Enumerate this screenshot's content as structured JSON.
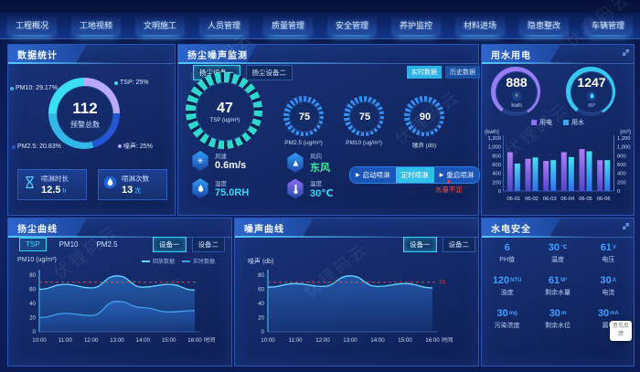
{
  "watermark": "伏锂码云",
  "icons": {
    "play": "▶",
    "warning_triangle": "▲",
    "fan": "✳",
    "arrow": "▶"
  },
  "nav": {
    "items": [
      "工程概况",
      "工地视频",
      "文明施工",
      "人员管理",
      "质量管理",
      "安全管理",
      "养护监控",
      "材料进场",
      "隐患整改",
      "车辆管理"
    ]
  },
  "panels": {
    "stats": {
      "title": "数据统计",
      "donut": {
        "value": "112",
        "label": "预警总数",
        "segments": [
          {
            "name": "TSP",
            "pct": "25%",
            "color": "#3ae0f2"
          },
          {
            "name": "噪声",
            "pct": "25%",
            "color": "#b9a9f9"
          },
          {
            "name": "PM2.5",
            "pct": "20.83%",
            "color": "#2456d8"
          },
          {
            "name": "PM10",
            "pct": "29.17%",
            "color": "#31b8e8"
          }
        ]
      },
      "boxes": [
        {
          "icon": "hourglass-icon",
          "label": "喷淋时长",
          "value": "12.5",
          "unit": "h"
        },
        {
          "icon": "water-drop-icon",
          "label": "喷淋次数",
          "value": "13",
          "unit": "次"
        }
      ]
    },
    "dust_monitor": {
      "title": "扬尘噪声监测",
      "tabs": [
        {
          "label": "扬尘设备一",
          "active": true
        },
        {
          "label": "扬尘设备二",
          "active": false
        }
      ],
      "data_buttons": [
        {
          "label": "实时数据",
          "active": true
        },
        {
          "label": "历史数据",
          "active": false
        }
      ],
      "main_gauge": {
        "value": "47",
        "label": "TSP",
        "unit": "(ug/m³)"
      },
      "gauges": [
        {
          "value": "75",
          "label": "PM2.5",
          "unit": "(ug/m³)"
        },
        {
          "value": "75",
          "label": "PM10",
          "unit": "(ug/m³)"
        },
        {
          "value": "90",
          "label": "噪声",
          "unit": "(db)"
        }
      ],
      "env": [
        {
          "label": "风速",
          "value": "0.6m/s",
          "icon": "fan-icon",
          "icon_color": "#2f9df5",
          "value_color": "#eef8ff"
        },
        {
          "label": "风向",
          "value": "东风",
          "icon": "wind-arrow-icon",
          "icon_color": "#2f9df5",
          "value_color": "#35e8a0"
        },
        {
          "label": "湿度",
          "value": "75.0RH",
          "icon": "humidity-icon",
          "icon_color": "#2f9df5",
          "value_color": "#35d6f5"
        },
        {
          "label": "温度",
          "value": "30℃",
          "icon": "thermometer-icon",
          "icon_color": "#8f6df0",
          "value_color": "#35d6f5"
        }
      ],
      "spray_buttons": [
        {
          "label": "启动喷淋",
          "play": true,
          "active": false
        },
        {
          "label": "定时喷淋",
          "play": false,
          "active": true
        },
        {
          "label": "重启喷淋",
          "play": true,
          "active": false
        }
      ],
      "warning": "水量不足"
    },
    "usage": {
      "title": "用水用电",
      "rings": [
        {
          "value": "888",
          "unit": "kwh",
          "color": "#9a7bf7",
          "icon": "lightning-icon"
        },
        {
          "value": "1247",
          "unit": "m³",
          "color": "#35c8f0",
          "icon": "water-drop-icon"
        }
      ],
      "legend": [
        {
          "label": "用电",
          "color": "#8f6df0"
        },
        {
          "label": "用水",
          "color": "#35aef0"
        }
      ]
    },
    "dust_curve": {
      "title": "扬尘曲线",
      "tabs": [
        {
          "label": "TSP",
          "active": true
        },
        {
          "label": "PM10",
          "active": false
        },
        {
          "label": "PM2.5",
          "active": false
        }
      ],
      "buttons": [
        {
          "label": "设备一",
          "active": true
        },
        {
          "label": "设备二",
          "active": false
        }
      ],
      "legend": [
        {
          "label": "回放数据"
        },
        {
          "label": "实时数据"
        }
      ],
      "axis_title": "PM10 (ug/m³)"
    },
    "noise_curve": {
      "title": "噪声曲线",
      "buttons": [
        {
          "label": "设备一",
          "active": true
        },
        {
          "label": "设备二",
          "active": false
        }
      ],
      "axis_title": "噪声 (db)"
    },
    "safety": {
      "title": "水电安全",
      "metrics": [
        {
          "value": "6",
          "unit": "",
          "label": "PH值"
        },
        {
          "value": "30",
          "unit": "℃",
          "label": "温度"
        },
        {
          "value": "61",
          "unit": "V",
          "label": "电压"
        },
        {
          "value": "120",
          "unit": "NTU",
          "label": "浊度"
        },
        {
          "value": "61",
          "unit": "M³",
          "label": "剩余水量"
        },
        {
          "value": "30",
          "unit": "A",
          "label": "电流"
        },
        {
          "value": "30",
          "unit": "mg",
          "label": "污染浓度"
        },
        {
          "value": "30",
          "unit": "m",
          "label": "剩余水位"
        },
        {
          "value": "30",
          "unit": "mA",
          "label": "漏电"
        }
      ],
      "widget": "意见反馈"
    }
  },
  "chart_data": [
    {
      "id": "usage_bars",
      "type": "bar",
      "title": "用水用电",
      "categories": [
        "06-01",
        "06-02",
        "06-03",
        "06-04",
        "06-05",
        "06-06"
      ],
      "series": [
        {
          "name": "用电",
          "values": [
            880,
            730,
            680,
            880,
            950,
            700
          ]
        },
        {
          "name": "用水",
          "values": [
            620,
            760,
            700,
            770,
            900,
            700
          ]
        }
      ],
      "ylabel_left": "(kwh)",
      "ylabel_right": "(m³)",
      "ylim": [
        0,
        1200
      ],
      "yticks": [
        0,
        200,
        400,
        600,
        800,
        1000,
        1200
      ],
      "legend_position": "top"
    },
    {
      "id": "dust_lines",
      "type": "line",
      "title": "扬尘曲线",
      "x": [
        "10:00",
        "11:00",
        "12:00",
        "13:00",
        "14:00",
        "15:00",
        "16:00"
      ],
      "series": [
        {
          "name": "回放数据",
          "values": [
            60,
            67,
            62,
            79,
            63,
            67,
            59
          ]
        },
        {
          "name": "实时数据",
          "values": [
            20,
            26,
            23,
            43,
            34,
            28,
            30
          ]
        }
      ],
      "threshold": 70,
      "ylabel": "PM10 (ug/m³)",
      "xlabel": "时间",
      "ylim": [
        0,
        80
      ],
      "yticks": [
        0,
        20,
        40,
        60,
        80
      ]
    },
    {
      "id": "noise_lines",
      "type": "line",
      "title": "噪声曲线",
      "x": [
        "10:00",
        "11:00",
        "12:00",
        "13:00",
        "14:00",
        "15:00",
        "16:00"
      ],
      "series": [
        {
          "name": "噪声",
          "values": [
            63,
            68,
            64,
            79,
            64,
            68,
            62
          ]
        }
      ],
      "threshold": 70,
      "threshold_label": "70",
      "ylabel": "噪声 (db)",
      "xlabel": "时间",
      "ylim": [
        0,
        80
      ],
      "yticks": [
        0,
        20,
        40,
        60,
        80
      ]
    }
  ]
}
